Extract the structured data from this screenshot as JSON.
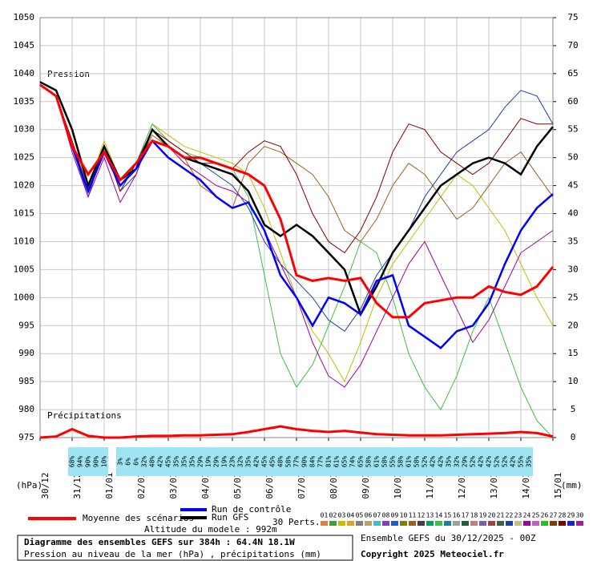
{
  "chart_data": {
    "type": "line",
    "title": "Diagramme des ensembles GEFS sur 384h : 64.4N 18.1W",
    "subtitle": "Pression au niveau de la mer (hPa) , précipitations (mm)",
    "run_info": "Ensemble GEFS du 30/12/2025 - 00Z",
    "copyright": "Copyright 2025 Meteociel.fr",
    "altitude": "Altitude du modele : 992m",
    "annotations": [
      "Pression",
      "Précipitations"
    ],
    "y_label": "(hPa)",
    "y2_label": "(mm)",
    "members_label": "30 Perts.",
    "grid": true,
    "x": [
      0,
      12,
      24,
      36,
      48,
      60,
      72,
      84,
      96,
      108,
      120,
      132,
      144,
      156,
      168,
      180,
      192,
      204,
      216,
      228,
      240,
      252,
      264,
      276,
      288,
      300,
      312,
      324,
      336,
      348,
      360,
      372,
      384
    ],
    "xlim": [
      0,
      384
    ],
    "xticks": [
      {
        "value": 0,
        "label": "30/12"
      },
      {
        "value": 24,
        "label": "31/12"
      },
      {
        "value": 48,
        "label": "01/01"
      },
      {
        "value": 72,
        "label": "02/01"
      },
      {
        "value": 96,
        "label": "03/01"
      },
      {
        "value": 120,
        "label": "04/01"
      },
      {
        "value": 144,
        "label": "05/01"
      },
      {
        "value": 168,
        "label": "06/01"
      },
      {
        "value": 192,
        "label": "07/01"
      },
      {
        "value": 216,
        "label": "08/01"
      },
      {
        "value": 240,
        "label": "09/01"
      },
      {
        "value": 264,
        "label": "10/01"
      },
      {
        "value": 288,
        "label": "11/01"
      },
      {
        "value": 312,
        "label": "12/01"
      },
      {
        "value": 336,
        "label": "13/01"
      },
      {
        "value": 360,
        "label": "14/01"
      },
      {
        "value": 384,
        "label": "15/01"
      }
    ],
    "ylim": [
      975,
      1050
    ],
    "yticks": [
      975,
      980,
      985,
      990,
      995,
      1000,
      1005,
      1010,
      1015,
      1020,
      1025,
      1030,
      1035,
      1040,
      1045,
      1050
    ],
    "y2lim": [
      0,
      75
    ],
    "y2ticks": [
      0,
      5,
      10,
      15,
      20,
      25,
      30,
      35,
      40,
      45,
      50,
      55,
      60,
      65,
      70,
      75
    ],
    "series": [
      {
        "name": "Moyenne des scénarios",
        "color": "#ff0000",
        "values": [
          1038,
          1036,
          1027,
          1022,
          1026,
          1021,
          1024,
          1028,
          1027,
          1025,
          1025,
          1024,
          1023,
          1022,
          1020,
          1014,
          1004,
          1003,
          1003.5,
          1003,
          1003.5,
          999,
          996.5,
          996.5,
          999,
          999.5,
          1000,
          1000,
          1002,
          1001,
          1000.5,
          1002,
          1005.5
        ]
      },
      {
        "name": "Run de contrôle",
        "color": "#0000ff",
        "values": [
          1038,
          1036,
          1027,
          1019,
          1026,
          1020,
          1023,
          1028,
          1025,
          1023,
          1021,
          1018,
          1016,
          1017,
          1012,
          1004,
          1000,
          995,
          1000,
          999,
          997,
          1003,
          1004,
          995,
          993,
          991,
          994,
          995,
          999,
          1006,
          1012,
          1016,
          1018.5
        ]
      },
      {
        "name": "Run GFS",
        "color": "#000000",
        "values": [
          1038.5,
          1037,
          1030,
          1020,
          1027,
          1021,
          1023,
          1030,
          1027,
          1025,
          1024,
          1023,
          1022,
          1019,
          1013,
          1011,
          1013,
          1011,
          1008,
          1005,
          997,
          1002,
          1008,
          1012,
          1016,
          1020,
          1022,
          1024,
          1025,
          1024,
          1022,
          1027,
          1030.5
        ]
      }
    ],
    "precipitation": {
      "axis": "y2",
      "color": "#ff0000",
      "values": [
        0,
        0.2,
        1.5,
        0.3,
        0,
        0,
        0.2,
        0.3,
        0.3,
        0.4,
        0.4,
        0.5,
        0.6,
        1,
        1.5,
        2,
        1.5,
        1.2,
        1,
        1.2,
        0.9,
        0.6,
        0.5,
        0.4,
        0.4,
        0.4,
        0.5,
        0.6,
        0.7,
        0.8,
        1,
        0.8,
        0.2
      ]
    },
    "members": [
      {
        "name": "01",
        "color": "#e08040"
      },
      {
        "name": "02",
        "color": "#40a040"
      },
      {
        "name": "03",
        "color": "#c0c000",
        "values": [
          1038,
          1036,
          1028,
          1020,
          1028,
          1021,
          1024,
          1031,
          1029,
          1027,
          1026,
          1025,
          1024,
          1022,
          1016,
          1008,
          1000,
          994,
          990,
          985,
          992,
          1000,
          1006,
          1010,
          1014,
          1018,
          1022,
          1020,
          1016,
          1012,
          1006,
          1000,
          995
        ]
      },
      {
        "name": "04",
        "color": "#e0a020"
      },
      {
        "name": "05",
        "color": "#808080"
      },
      {
        "name": "06",
        "color": "#c0a060"
      },
      {
        "name": "07",
        "color": "#40c0c0"
      },
      {
        "name": "08",
        "color": "#8040c0"
      },
      {
        "name": "09",
        "color": "#2060c0"
      },
      {
        "name": "10",
        "color": "#808000"
      },
      {
        "name": "11",
        "color": "#a06020",
        "values": [
          1038,
          1036,
          1027,
          1020,
          1027,
          1020,
          1023,
          1029,
          1027,
          1025,
          1020,
          1018,
          1016,
          1024,
          1027,
          1026,
          1024,
          1022,
          1018,
          1012,
          1010,
          1014,
          1020,
          1024,
          1022,
          1018,
          1014,
          1016,
          1020,
          1024,
          1026,
          1022,
          1018
        ]
      },
      {
        "name": "12",
        "color": "#404040"
      },
      {
        "name": "13",
        "color": "#00a060"
      },
      {
        "name": "14",
        "color": "#40c040",
        "values": [
          1038,
          1036,
          1027,
          1019,
          1026,
          1020,
          1024,
          1031,
          1028,
          1026,
          1025,
          1024,
          1023,
          1018,
          1004,
          990,
          984,
          988,
          995,
          1002,
          1010,
          1008,
          1000,
          990,
          984,
          980,
          986,
          994,
          1000,
          992,
          984,
          978,
          975
        ]
      },
      {
        "name": "15",
        "color": "#2080a0"
      },
      {
        "name": "16",
        "color": "#a0a0a0"
      },
      {
        "name": "17",
        "color": "#206040"
      },
      {
        "name": "18",
        "color": "#c08080"
      },
      {
        "name": "19",
        "color": "#8060a0"
      },
      {
        "name": "20",
        "color": "#a04040"
      },
      {
        "name": "21",
        "color": "#406040"
      },
      {
        "name": "22",
        "color": "#2040a0",
        "values": [
          1038,
          1036,
          1027,
          1018,
          1027,
          1019,
          1022,
          1030,
          1027,
          1025,
          1024,
          1022,
          1020,
          1016,
          1010,
          1006,
          1003,
          1000,
          996,
          994,
          998,
          1004,
          1008,
          1012,
          1018,
          1022,
          1026,
          1028,
          1030,
          1034,
          1037,
          1036,
          1031
        ]
      },
      {
        "name": "23",
        "color": "#c0c080"
      },
      {
        "name": "24",
        "color": "#a000a0",
        "values": [
          1038,
          1036,
          1026,
          1018,
          1025,
          1017,
          1022,
          1030,
          1027,
          1024,
          1022,
          1020,
          1019,
          1017,
          1012,
          1006,
          1000,
          992,
          986,
          984,
          988,
          994,
          1000,
          1006,
          1010,
          1004,
          998,
          992,
          996,
          1002,
          1008,
          1010,
          1012
        ]
      },
      {
        "name": "25",
        "color": "#c060c0"
      },
      {
        "name": "26",
        "color": "#20c020"
      },
      {
        "name": "27",
        "color": "#804000"
      },
      {
        "name": "28",
        "color": "#800000",
        "values": [
          1038,
          1036,
          1028,
          1019,
          1027,
          1019,
          1024,
          1030,
          1028,
          1026,
          1024,
          1024,
          1023,
          1026,
          1028,
          1027,
          1022,
          1015,
          1010,
          1008,
          1012,
          1018,
          1026,
          1031,
          1030,
          1026,
          1024,
          1022,
          1024,
          1028,
          1032,
          1031,
          1031
        ]
      },
      {
        "name": "29",
        "color": "#2020c0"
      },
      {
        "name": "30",
        "color": "#a020a0"
      }
    ],
    "precip_probability": {
      "hours": [
        24,
        30,
        36,
        42,
        48,
        60,
        66,
        72,
        78,
        84,
        90,
        96,
        102,
        108,
        114,
        120,
        126,
        132,
        138,
        144,
        150,
        156,
        162,
        168,
        174,
        180,
        186,
        192,
        198,
        204,
        210,
        216,
        222,
        228,
        234,
        240,
        246,
        252,
        258,
        264,
        270,
        276,
        282,
        288,
        294,
        300,
        306,
        312,
        318,
        324,
        330,
        336,
        342,
        348,
        354,
        360,
        366
      ],
      "labels": [
        "68%",
        "94%",
        "90%",
        "90%",
        "10%",
        "3%",
        "6%",
        "6%",
        "32%",
        "48%",
        "42%",
        "45%",
        "35%",
        "35%",
        "35%",
        "29%",
        "19%",
        "29%",
        "19%",
        "23%",
        "32%",
        "35%",
        "42%",
        "45%",
        "45%",
        "48%",
        "58%",
        "77%",
        "90%",
        "84%",
        "77%",
        "81%",
        "61%",
        "65%",
        "74%",
        "65%",
        "58%",
        "61%",
        "58%",
        "55%",
        "58%",
        "61%",
        "58%",
        "52%",
        "42%",
        "42%",
        "35%",
        "32%",
        "29%",
        "52%",
        "42%",
        "42%",
        "52%",
        "52%",
        "42%",
        "55%",
        "35%"
      ]
    }
  }
}
